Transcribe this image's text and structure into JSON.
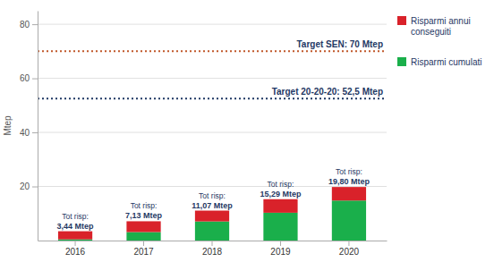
{
  "chart_data": {
    "type": "bar",
    "stacked": true,
    "categories": [
      "2016",
      "2017",
      "2018",
      "2019",
      "2020"
    ],
    "series": [
      {
        "name": "Risparmi cumulati",
        "color": "#1aaf4b",
        "values": [
          0.44,
          3.13,
          7.07,
          10.29,
          14.8
        ]
      },
      {
        "name": "Risparmi annui\nconseguiti",
        "color": "#d9222a",
        "values": [
          3.0,
          4.0,
          4.0,
          5.0,
          5.0
        ]
      }
    ],
    "totals": [
      3.44,
      7.13,
      11.07,
      15.29,
      19.8
    ],
    "totals_labels": [
      "3,44 Mtep",
      "7,13 Mtep",
      "11,07 Mtep",
      "15,29 Mtep",
      "19,80 Mtep"
    ],
    "totals_prefix": [
      "Tot risp:",
      "Tot risp:",
      "Tot risp:",
      "Tot risp:",
      "Tot risp:"
    ],
    "reference_lines": [
      {
        "value": 70,
        "label": "Target SEN: 70 Mtep",
        "color": "#c0582a",
        "line_style": "dotted"
      },
      {
        "value": 52.5,
        "label": "Target 20-20-20: 52,5 Mtep",
        "color": "#1f3864",
        "line_style": "dotted"
      }
    ],
    "ylabel": "Mtep",
    "ylim": [
      0,
      85
    ],
    "yticks": [
      20,
      40,
      60,
      80
    ],
    "grid": true,
    "legend": "right"
  }
}
